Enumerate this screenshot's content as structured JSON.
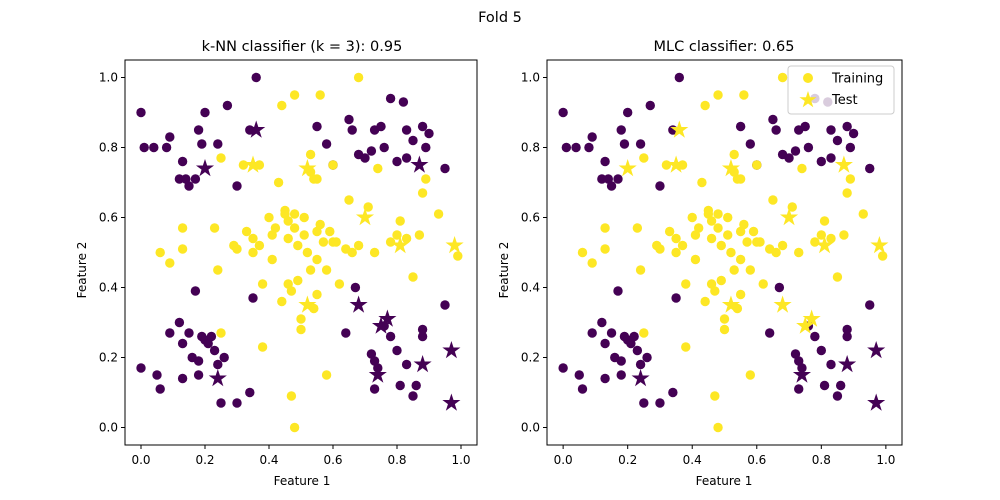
{
  "figure": {
    "suptitle": "Fold 5"
  },
  "colors": {
    "class_0": "#440154",
    "class_1": "#fde725"
  },
  "chart_data": [
    {
      "type": "scatter",
      "title": "k-NN classifier (k = 3): 0.95",
      "xlabel": "Feature 1",
      "ylabel": "Feature 2",
      "xlim": [
        -0.05,
        1.05
      ],
      "ylim": [
        -0.05,
        1.05
      ],
      "xticks": [
        "0.0",
        "0.2",
        "0.4",
        "0.6",
        "0.8",
        "1.0"
      ],
      "yticks": [
        "0.0",
        "0.2",
        "0.4",
        "0.6",
        "0.8",
        "1.0"
      ],
      "legend": null,
      "training": [
        [
          0.0,
          0.9,
          0
        ],
        [
          0.01,
          0.8,
          0
        ],
        [
          0.04,
          0.8,
          0
        ],
        [
          0.08,
          0.8,
          0
        ],
        [
          0.09,
          0.83,
          0
        ],
        [
          0.12,
          0.71,
          0
        ],
        [
          0.13,
          0.76,
          0
        ],
        [
          0.14,
          0.71,
          0
        ],
        [
          0.15,
          0.69,
          0
        ],
        [
          0.17,
          0.71,
          0
        ],
        [
          0.18,
          0.85,
          0
        ],
        [
          0.2,
          0.9,
          0
        ],
        [
          0.19,
          0.81,
          0
        ],
        [
          0.24,
          0.81,
          0
        ],
        [
          0.27,
          0.92,
          0
        ],
        [
          0.3,
          0.69,
          0
        ],
        [
          0.34,
          0.85,
          0
        ],
        [
          0.36,
          1.0,
          0
        ],
        [
          0.55,
          0.86,
          0
        ],
        [
          0.58,
          0.81,
          0
        ],
        [
          0.6,
          0.75,
          0
        ],
        [
          0.65,
          0.88,
          0
        ],
        [
          0.66,
          0.85,
          0
        ],
        [
          0.68,
          0.78,
          0
        ],
        [
          0.7,
          0.77,
          0
        ],
        [
          0.72,
          0.79,
          0
        ],
        [
          0.73,
          0.85,
          0
        ],
        [
          0.75,
          0.86,
          0
        ],
        [
          0.76,
          0.8,
          0
        ],
        [
          0.78,
          0.94,
          0
        ],
        [
          0.8,
          0.76,
          0
        ],
        [
          0.82,
          0.93,
          0
        ],
        [
          0.83,
          0.85,
          0
        ],
        [
          0.83,
          0.77,
          0
        ],
        [
          0.85,
          0.82,
          0
        ],
        [
          0.88,
          0.86,
          0
        ],
        [
          0.89,
          0.8,
          0
        ],
        [
          0.9,
          0.84,
          0
        ],
        [
          0.95,
          0.74,
          0
        ],
        [
          0.0,
          0.17,
          0
        ],
        [
          0.05,
          0.15,
          0
        ],
        [
          0.06,
          0.11,
          0
        ],
        [
          0.09,
          0.27,
          0
        ],
        [
          0.12,
          0.3,
          0
        ],
        [
          0.13,
          0.24,
          0
        ],
        [
          0.13,
          0.14,
          0
        ],
        [
          0.15,
          0.27,
          0
        ],
        [
          0.16,
          0.2,
          0
        ],
        [
          0.17,
          0.39,
          0
        ],
        [
          0.18,
          0.19,
          0
        ],
        [
          0.19,
          0.26,
          0
        ],
        [
          0.2,
          0.25,
          0
        ],
        [
          0.21,
          0.24,
          0
        ],
        [
          0.22,
          0.26,
          0
        ],
        [
          0.23,
          0.22,
          0
        ],
        [
          0.24,
          0.18,
          0
        ],
        [
          0.25,
          0.07,
          0
        ],
        [
          0.26,
          0.2,
          0
        ],
        [
          0.3,
          0.07,
          0
        ],
        [
          0.34,
          0.1,
          0
        ],
        [
          0.64,
          0.27,
          0
        ],
        [
          0.67,
          0.4,
          0
        ],
        [
          0.72,
          0.21,
          0
        ],
        [
          0.73,
          0.19,
          0
        ],
        [
          0.73,
          0.11,
          0
        ],
        [
          0.74,
          0.17,
          0
        ],
        [
          0.76,
          0.29,
          0
        ],
        [
          0.78,
          0.26,
          0
        ],
        [
          0.8,
          0.22,
          0
        ],
        [
          0.81,
          0.12,
          0
        ],
        [
          0.83,
          0.18,
          0
        ],
        [
          0.85,
          0.09,
          0
        ],
        [
          0.86,
          0.12,
          0
        ],
        [
          0.88,
          0.26,
          0
        ],
        [
          0.88,
          0.28,
          0
        ],
        [
          0.95,
          0.35,
          0
        ],
        [
          0.35,
          0.37,
          0
        ],
        [
          0.18,
          0.15,
          0
        ],
        [
          0.06,
          0.5,
          1
        ],
        [
          0.09,
          0.47,
          1
        ],
        [
          0.13,
          0.51,
          1
        ],
        [
          0.13,
          0.57,
          1
        ],
        [
          0.23,
          0.57,
          1
        ],
        [
          0.24,
          0.45,
          1
        ],
        [
          0.25,
          0.27,
          1
        ],
        [
          0.25,
          0.77,
          1
        ],
        [
          0.29,
          0.52,
          1
        ],
        [
          0.3,
          0.51,
          1
        ],
        [
          0.32,
          0.75,
          1
        ],
        [
          0.33,
          0.56,
          1
        ],
        [
          0.35,
          0.54,
          1
        ],
        [
          0.35,
          0.5,
          1
        ],
        [
          0.37,
          0.52,
          1
        ],
        [
          0.37,
          0.75,
          1
        ],
        [
          0.38,
          0.41,
          1
        ],
        [
          0.38,
          0.23,
          1
        ],
        [
          0.4,
          0.6,
          1
        ],
        [
          0.41,
          0.55,
          1
        ],
        [
          0.41,
          0.48,
          1
        ],
        [
          0.42,
          0.57,
          1
        ],
        [
          0.43,
          0.7,
          1
        ],
        [
          0.44,
          0.92,
          1
        ],
        [
          0.45,
          0.62,
          1
        ],
        [
          0.45,
          0.61,
          1
        ],
        [
          0.46,
          0.59,
          1
        ],
        [
          0.46,
          0.54,
          1
        ],
        [
          0.46,
          0.41,
          1
        ],
        [
          0.47,
          0.39,
          1
        ],
        [
          0.48,
          0.95,
          1
        ],
        [
          0.48,
          0.61,
          1
        ],
        [
          0.48,
          0.57,
          1
        ],
        [
          0.49,
          0.52,
          1
        ],
        [
          0.49,
          0.42,
          1
        ],
        [
          0.5,
          0.31,
          1
        ],
        [
          0.5,
          0.28,
          1
        ],
        [
          0.51,
          0.6,
          1
        ],
        [
          0.51,
          0.55,
          1
        ],
        [
          0.52,
          0.5,
          1
        ],
        [
          0.53,
          0.78,
          1
        ],
        [
          0.53,
          0.73,
          1
        ],
        [
          0.54,
          0.71,
          1
        ],
        [
          0.55,
          0.71,
          1
        ],
        [
          0.55,
          0.56,
          1
        ],
        [
          0.55,
          0.48,
          1
        ],
        [
          0.55,
          0.38,
          1
        ],
        [
          0.56,
          0.95,
          1
        ],
        [
          0.56,
          0.58,
          1
        ],
        [
          0.57,
          0.53,
          1
        ],
        [
          0.58,
          0.45,
          1
        ],
        [
          0.58,
          0.15,
          1
        ],
        [
          0.59,
          0.56,
          1
        ],
        [
          0.6,
          0.53,
          1
        ],
        [
          0.61,
          0.53,
          1
        ],
        [
          0.62,
          0.41,
          1
        ],
        [
          0.64,
          0.51,
          1
        ],
        [
          0.65,
          0.65,
          1
        ],
        [
          0.66,
          0.5,
          1
        ],
        [
          0.68,
          0.52,
          1
        ],
        [
          0.68,
          1.0,
          1
        ],
        [
          0.71,
          0.63,
          1
        ],
        [
          0.73,
          0.5,
          1
        ],
        [
          0.74,
          0.74,
          1
        ],
        [
          0.78,
          0.53,
          1
        ],
        [
          0.8,
          0.55,
          1
        ],
        [
          0.81,
          0.59,
          1
        ],
        [
          0.83,
          0.54,
          1
        ],
        [
          0.85,
          0.43,
          1
        ],
        [
          0.87,
          0.55,
          1
        ],
        [
          0.88,
          0.67,
          1
        ],
        [
          0.89,
          0.71,
          1
        ],
        [
          0.93,
          0.61,
          1
        ],
        [
          0.99,
          0.49,
          1
        ],
        [
          0.47,
          0.09,
          1
        ],
        [
          0.48,
          0.0,
          1
        ],
        [
          0.6,
          0.75,
          1
        ],
        [
          0.44,
          0.36,
          1
        ],
        [
          0.54,
          0.34,
          1
        ],
        [
          0.53,
          0.45,
          1
        ]
      ],
      "test": [
        [
          0.2,
          0.74,
          0
        ],
        [
          0.36,
          0.85,
          0
        ],
        [
          0.87,
          0.75,
          0
        ],
        [
          0.24,
          0.14,
          0
        ],
        [
          0.68,
          0.35,
          0
        ],
        [
          0.74,
          0.15,
          0
        ],
        [
          0.75,
          0.29,
          0
        ],
        [
          0.77,
          0.31,
          0
        ],
        [
          0.88,
          0.18,
          0
        ],
        [
          0.97,
          0.22,
          0
        ],
        [
          0.97,
          0.07,
          0
        ],
        [
          0.35,
          0.75,
          1
        ],
        [
          0.52,
          0.74,
          1
        ],
        [
          0.7,
          0.6,
          1
        ],
        [
          0.81,
          0.52,
          1
        ],
        [
          0.98,
          0.52,
          1
        ],
        [
          0.52,
          0.35,
          1
        ]
      ]
    },
    {
      "type": "scatter",
      "title": "MLC classifier: 0.65",
      "xlabel": "Feature 1",
      "ylabel": "Feature 2",
      "xlim": [
        -0.05,
        1.05
      ],
      "ylim": [
        -0.05,
        1.05
      ],
      "xticks": [
        "0.0",
        "0.2",
        "0.4",
        "0.6",
        "0.8",
        "1.0"
      ],
      "yticks": [
        "0.0",
        "0.2",
        "0.4",
        "0.6",
        "0.8",
        "1.0"
      ],
      "legend": {
        "position": "top-right",
        "training_label": "Training",
        "test_label": "Test"
      },
      "training": "same as first panel",
      "test": [
        [
          0.2,
          0.74,
          1
        ],
        [
          0.36,
          0.85,
          1
        ],
        [
          0.87,
          0.75,
          1
        ],
        [
          0.24,
          0.14,
          0
        ],
        [
          0.68,
          0.35,
          1
        ],
        [
          0.74,
          0.15,
          0
        ],
        [
          0.75,
          0.29,
          1
        ],
        [
          0.77,
          0.31,
          1
        ],
        [
          0.88,
          0.18,
          0
        ],
        [
          0.97,
          0.22,
          0
        ],
        [
          0.97,
          0.07,
          0
        ],
        [
          0.35,
          0.75,
          1
        ],
        [
          0.52,
          0.74,
          1
        ],
        [
          0.7,
          0.6,
          1
        ],
        [
          0.81,
          0.52,
          1
        ],
        [
          0.98,
          0.52,
          1
        ],
        [
          0.52,
          0.35,
          1
        ]
      ]
    }
  ]
}
